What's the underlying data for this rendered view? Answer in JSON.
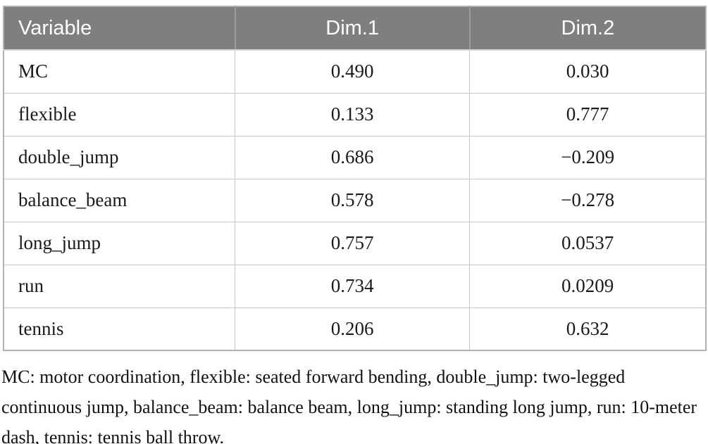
{
  "table": {
    "header": {
      "variable": "Variable",
      "dim1": "Dim.1",
      "dim2": "Dim.2"
    },
    "rows": [
      {
        "variable": "MC",
        "dim1": "0.490",
        "dim2": "0.030"
      },
      {
        "variable": "flexible",
        "dim1": "0.133",
        "dim2": "0.777"
      },
      {
        "variable": "double_jump",
        "dim1": "0.686",
        "dim2": "−0.209"
      },
      {
        "variable": "balance_beam",
        "dim1": "0.578",
        "dim2": "−0.278"
      },
      {
        "variable": "long_jump",
        "dim1": "0.757",
        "dim2": "0.0537"
      },
      {
        "variable": "run",
        "dim1": "0.734",
        "dim2": "0.0209"
      },
      {
        "variable": "tennis",
        "dim1": "0.206",
        "dim2": "0.632"
      }
    ]
  },
  "footnote": "MC: motor coordination, flexible: seated forward bending, double_jump: two-legged continuous jump, balance_beam: balance beam, long_jump: standing long jump, run: 10-meter dash, tennis: tennis ball throw.",
  "colors": {
    "header_bg": "#7f7f7f",
    "header_text": "#ffffff",
    "inner_border": "#c6c6c6",
    "outer_border": "#b2b2b2",
    "body_text": "#1a1a1a"
  },
  "chart_data": {
    "type": "table",
    "title": "",
    "columns": [
      "Variable",
      "Dim.1",
      "Dim.2"
    ],
    "rows": [
      [
        "MC",
        0.49,
        0.03
      ],
      [
        "flexible",
        0.133,
        0.777
      ],
      [
        "double_jump",
        0.686,
        -0.209
      ],
      [
        "balance_beam",
        0.578,
        -0.278
      ],
      [
        "long_jump",
        0.757,
        0.0537
      ],
      [
        "run",
        0.734,
        0.0209
      ],
      [
        "tennis",
        0.206,
        0.632
      ]
    ]
  }
}
